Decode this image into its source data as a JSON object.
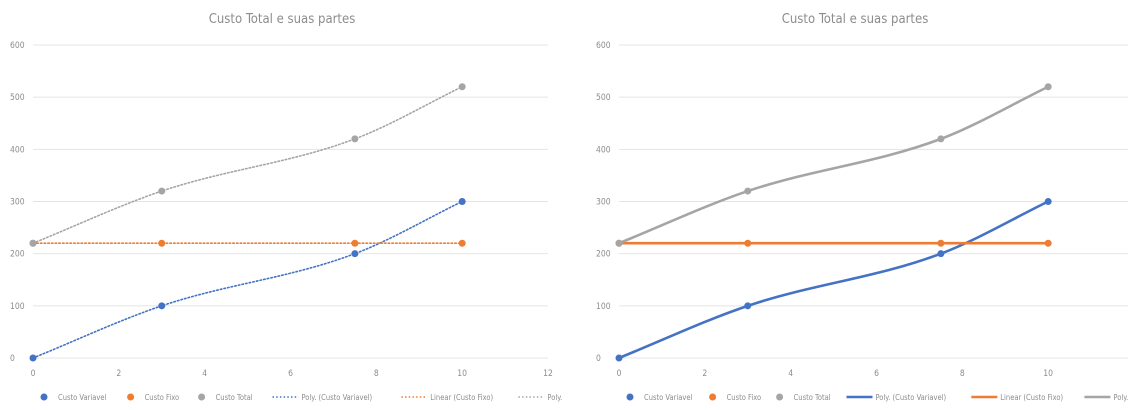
{
  "chart_data": [
    {
      "type": "scatter",
      "title": "Custo Total e suas partes",
      "xlim": [
        0,
        12
      ],
      "ylim": [
        0,
        600
      ],
      "xticks": [
        "0",
        "2",
        "4",
        "6",
        "8",
        "10",
        "12"
      ],
      "yticks": [
        "0",
        "100",
        "200",
        "300",
        "400",
        "500",
        "600"
      ],
      "grid": true,
      "legend_position": "bottom",
      "series": [
        {
          "name": "Custo Variavel",
          "color": "#4472c4",
          "x": [
            0,
            3,
            7.5,
            10
          ],
          "y": [
            0,
            100,
            200,
            300
          ]
        },
        {
          "name": "Custo Fixo",
          "color": "#ed7d31",
          "x": [
            0,
            3,
            7.5,
            10
          ],
          "y": [
            220,
            220,
            220,
            220
          ]
        },
        {
          "name": "Custo Total",
          "color": "#a5a5a5",
          "x": [
            0,
            3,
            7.5,
            10
          ],
          "y": [
            220,
            320,
            420,
            520
          ]
        }
      ],
      "trendlines": [
        {
          "name": "Poly. (Custo Variavel)",
          "of": 0,
          "color": "#4472c4",
          "style": "dotted"
        },
        {
          "name": "Linear (Custo Fixo)",
          "of": 1,
          "color": "#ed7d31",
          "style": "dotted"
        },
        {
          "name": "Poly. (Custo Total)",
          "of": 2,
          "color": "#a5a5a5",
          "style": "dotted"
        }
      ]
    },
    {
      "type": "scatter",
      "title": "Custo Total e suas partes",
      "xlim": [
        0,
        12
      ],
      "ylim": [
        0,
        600
      ],
      "xticks": [
        "0",
        "2",
        "4",
        "6",
        "8",
        "10"
      ],
      "yticks": [
        "0",
        "100",
        "200",
        "300",
        "400",
        "500",
        "600"
      ],
      "grid": true,
      "legend_position": "bottom",
      "series": [
        {
          "name": "Custo Variavel",
          "color": "#4472c4",
          "x": [
            0,
            3,
            7.5,
            10
          ],
          "y": [
            0,
            100,
            200,
            300
          ]
        },
        {
          "name": "Custo Fixo",
          "color": "#ed7d31",
          "x": [
            0,
            3,
            7.5,
            10
          ],
          "y": [
            220,
            220,
            220,
            220
          ]
        },
        {
          "name": "Custo Total",
          "color": "#a5a5a5",
          "x": [
            0,
            3,
            7.5,
            10
          ],
          "y": [
            220,
            320,
            420,
            520
          ]
        }
      ],
      "trendlines": [
        {
          "name": "Poly. (Custo Variavel)",
          "of": 0,
          "color": "#4472c4",
          "style": "solid"
        },
        {
          "name": "Linear (Custo Fixo)",
          "of": 1,
          "color": "#ed7d31",
          "style": "solid"
        },
        {
          "name": "Poly. (Custo Total)",
          "of": 2,
          "color": "#a5a5a5",
          "style": "solid"
        }
      ]
    }
  ]
}
